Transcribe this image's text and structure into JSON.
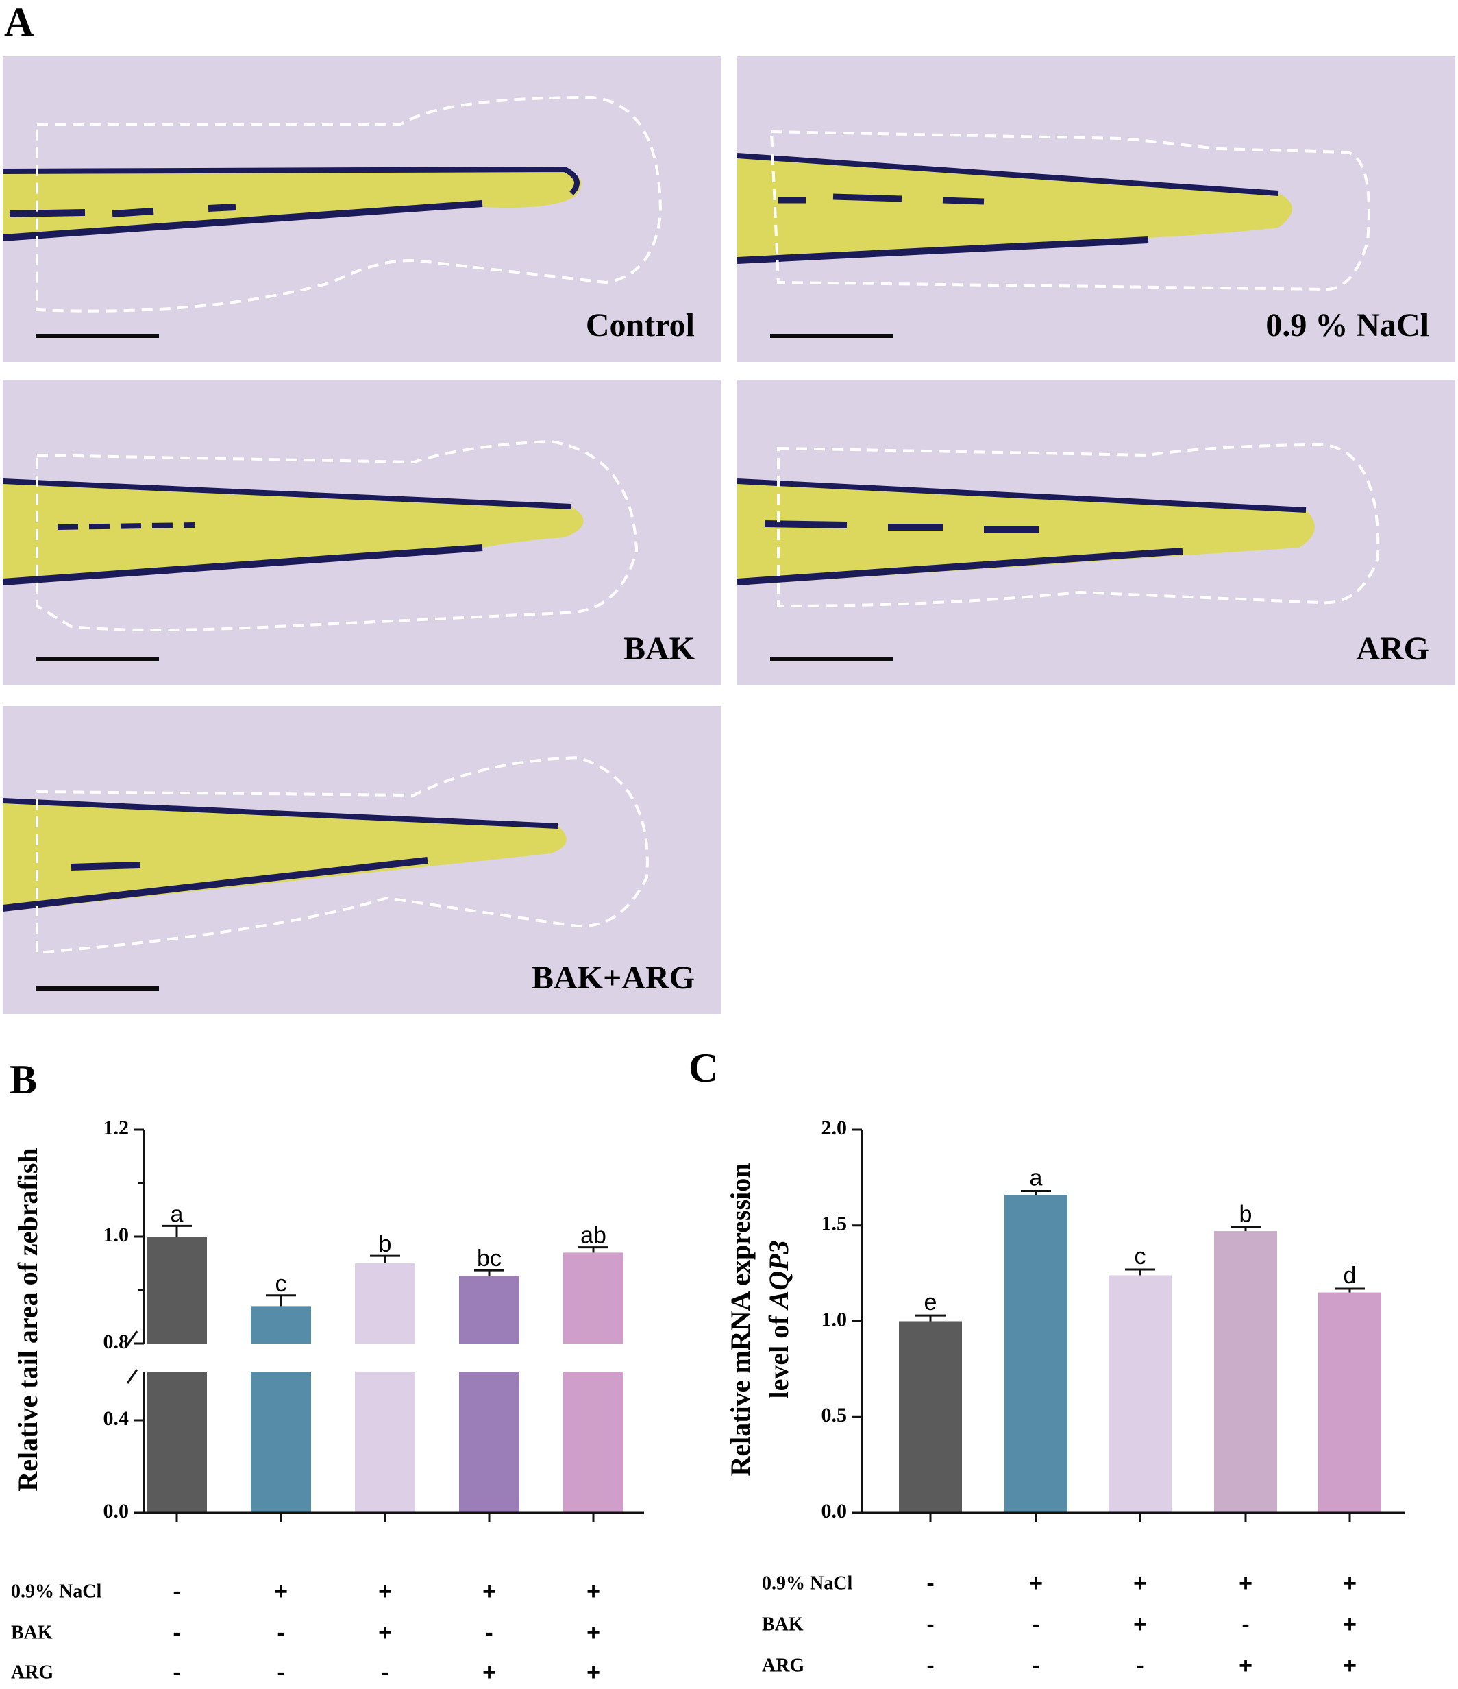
{
  "panels": {
    "A": "A",
    "B": "B",
    "C": "C"
  },
  "micrographs": [
    {
      "label": "Control"
    },
    {
      "label": "0.9 % NaCl"
    },
    {
      "label": "BAK"
    },
    {
      "label": "ARG"
    },
    {
      "label": "BAK+ARG"
    }
  ],
  "colors": {
    "control": "#5b5b5b",
    "nacl": "#568ca8",
    "bak": "#ddd0e6",
    "arg_B": "#9b7eb8",
    "arg_C": "#c9adc9",
    "bak_arg": "#cf9ec9",
    "image_background": "#dcd2e6",
    "outline": "#ffffff"
  },
  "treatments": {
    "rows": [
      {
        "label": "0.9% NaCl",
        "signs": [
          "-",
          "+",
          "+",
          "+",
          "+"
        ]
      },
      {
        "label": "BAK",
        "signs": [
          "-",
          "-",
          "+",
          "-",
          "+"
        ]
      },
      {
        "label": "ARG",
        "signs": [
          "-",
          "-",
          "-",
          "+",
          "+"
        ]
      }
    ]
  },
  "chart_data": [
    {
      "panel": "B",
      "type": "bar",
      "ylabel": "Relative tail area of zebrafish",
      "ylim": [
        0.0,
        1.2
      ],
      "y_axis_break": [
        0.4,
        0.8
      ],
      "yticks": [
        "0.0",
        "0.4",
        "0.8",
        "1.0",
        "1.2"
      ],
      "groups": [
        {
          "value": 1.0,
          "error": 0.02,
          "sig": "a",
          "color": "#5b5b5b"
        },
        {
          "value": 0.87,
          "error": 0.02,
          "sig": "c",
          "color": "#568ca8"
        },
        {
          "value": 0.95,
          "error": 0.014,
          "sig": "b",
          "color": "#ddd0e6"
        },
        {
          "value": 0.927,
          "error": 0.01,
          "sig": "bc",
          "color": "#9b7eb8"
        },
        {
          "value": 0.97,
          "error": 0.01,
          "sig": "ab",
          "color": "#cf9ec9"
        }
      ]
    },
    {
      "panel": "C",
      "type": "bar",
      "ylabel_line1": "Relative mRNA expression",
      "ylabel_line2_prefix": "level of ",
      "ylabel_gene": "AQP3",
      "ylim": [
        0.0,
        2.0
      ],
      "yticks": [
        "0.0",
        "0.5",
        "1.0",
        "1.5",
        "2.0"
      ],
      "groups": [
        {
          "value": 1.0,
          "error": 0.03,
          "sig": "e",
          "color": "#5b5b5b"
        },
        {
          "value": 1.66,
          "error": 0.02,
          "sig": "a",
          "color": "#568ca8"
        },
        {
          "value": 1.24,
          "error": 0.03,
          "sig": "c",
          "color": "#ddd0e6"
        },
        {
          "value": 1.47,
          "error": 0.02,
          "sig": "b",
          "color": "#c9adc9"
        },
        {
          "value": 1.15,
          "error": 0.02,
          "sig": "d",
          "color": "#cf9ec9"
        }
      ]
    }
  ]
}
